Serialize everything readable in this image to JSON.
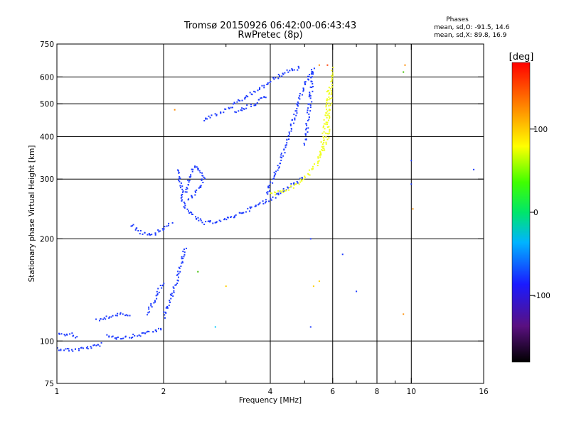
{
  "chart_data": {
    "type": "scatter",
    "title": "Tromsø 20150926 06:42:00-06:43:43",
    "subtitle": "RwPretec (8p)",
    "xlabel": "Frequency [MHz]",
    "ylabel": "Stationary phase Virtual Height [km]",
    "x_scale": "log",
    "y_scale": "log",
    "xlim": [
      1,
      16
    ],
    "ylim": [
      75,
      750
    ],
    "x_ticks": [
      1,
      2,
      4,
      6,
      8,
      10,
      16
    ],
    "x_minor_ticks": [
      3,
      5,
      7,
      9
    ],
    "y_ticks": [
      75,
      100,
      200,
      300,
      400,
      500,
      600,
      750
    ],
    "y_gridlines": [
      100,
      200,
      300,
      400,
      500,
      600
    ],
    "x_gridlines": [
      2,
      4,
      6,
      8,
      10
    ],
    "grid": true,
    "stats_header": "Phases",
    "stats_lines": [
      "mean, sd,O: -91.5, 14.6",
      "mean, sd,X:  89.8, 16.9"
    ],
    "colorbar": {
      "label": "[deg]",
      "range": [
        -180,
        180
      ],
      "ticks": [
        {
          "value": 100,
          "label": "100"
        },
        {
          "value": 0,
          "label": "0"
        },
        {
          "value": -100,
          "label": "-100"
        }
      ]
    },
    "series": [
      {
        "mode": "O",
        "color": "#1e3cff",
        "phase_deg": -91.5,
        "traces": [
          {
            "kind": "line",
            "points": [
              [
                1.0,
                95
              ],
              [
                1.1,
                94
              ],
              [
                1.25,
                96
              ],
              [
                1.35,
                98
              ]
            ]
          },
          {
            "kind": "line",
            "points": [
              [
                1.0,
                104
              ],
              [
                1.1,
                105
              ],
              [
                1.15,
                102
              ]
            ]
          },
          {
            "kind": "line",
            "points": [
              [
                1.38,
                104
              ],
              [
                1.5,
                102
              ],
              [
                1.7,
                104
              ],
              [
                1.85,
                107
              ],
              [
                2.0,
                108
              ]
            ]
          },
          {
            "kind": "line",
            "points": [
              [
                1.3,
                115
              ],
              [
                1.4,
                118
              ],
              [
                1.52,
                120
              ],
              [
                1.62,
                118
              ]
            ]
          },
          {
            "kind": "line",
            "points": [
              [
                2.0,
                118
              ],
              [
                2.1,
                135
              ],
              [
                2.18,
                150
              ],
              [
                2.25,
                170
              ],
              [
                2.3,
                190
              ]
            ]
          },
          {
            "kind": "line",
            "points": [
              [
                1.8,
                120
              ],
              [
                1.9,
                135
              ],
              [
                2.0,
                150
              ]
            ]
          },
          {
            "kind": "line",
            "points": [
              [
                1.7,
                210
              ],
              [
                1.85,
                204
              ],
              [
                2.0,
                214
              ],
              [
                2.12,
                222
              ]
            ]
          },
          {
            "kind": "line",
            "points": [
              [
                1.62,
                220
              ],
              [
                1.7,
                212
              ]
            ]
          },
          {
            "kind": "line",
            "points": [
              [
                2.2,
                320
              ],
              [
                2.28,
                250
              ],
              [
                2.4,
                235
              ],
              [
                2.6,
                222
              ],
              [
                3.0,
                228
              ],
              [
                3.5,
                245
              ],
              [
                4.0,
                262
              ],
              [
                4.5,
                285
              ],
              [
                5.0,
                305
              ]
            ]
          },
          {
            "kind": "line",
            "points": [
              [
                2.35,
                260
              ],
              [
                2.5,
                280
              ],
              [
                2.6,
                300
              ],
              [
                2.45,
                330
              ],
              [
                2.3,
                270
              ]
            ]
          },
          {
            "kind": "line",
            "points": [
              [
                2.6,
                450
              ],
              [
                2.9,
                470
              ],
              [
                3.2,
                500
              ],
              [
                3.6,
                540
              ],
              [
                4.0,
                580
              ],
              [
                4.4,
                620
              ],
              [
                4.9,
                640
              ]
            ]
          },
          {
            "kind": "line",
            "points": [
              [
                3.2,
                470
              ],
              [
                3.6,
                500
              ],
              [
                3.9,
                530
              ]
            ]
          },
          {
            "kind": "line",
            "points": [
              [
                3.9,
                270
              ],
              [
                4.0,
                290
              ],
              [
                4.2,
                320
              ],
              [
                4.5,
                400
              ],
              [
                4.8,
                500
              ],
              [
                5.1,
                600
              ],
              [
                5.3,
                630
              ]
            ]
          },
          {
            "kind": "line",
            "points": [
              [
                5.0,
                380
              ],
              [
                5.1,
                450
              ],
              [
                5.2,
                520
              ],
              [
                5.25,
                600
              ],
              [
                5.3,
                640
              ]
            ]
          }
        ]
      },
      {
        "mode": "X",
        "color": "#f0ff1e",
        "phase_deg": 89.8,
        "traces": [
          {
            "kind": "line",
            "points": [
              [
                4.0,
                270
              ],
              [
                4.5,
                280
              ],
              [
                5.0,
                300
              ],
              [
                5.5,
                340
              ],
              [
                5.8,
                400
              ],
              [
                5.9,
                500
              ],
              [
                5.95,
                600
              ],
              [
                6.0,
                640
              ]
            ]
          },
          {
            "kind": "line",
            "points": [
              [
                5.5,
                350
              ],
              [
                5.7,
                420
              ],
              [
                5.75,
                500
              ],
              [
                5.9,
                560
              ]
            ]
          }
        ]
      },
      {
        "mode": "scattered",
        "points": [
          [
            9.5,
            620,
            "#40c000"
          ],
          [
            9.6,
            650,
            "#ff8c00"
          ],
          [
            10.0,
            290,
            "#1e3cff"
          ],
          [
            10.0,
            340,
            "#1e3cff"
          ],
          [
            10.1,
            245,
            "#ff8c00"
          ],
          [
            9.5,
            120,
            "#ff8c00"
          ],
          [
            7.0,
            140,
            "#1e3cff"
          ],
          [
            6.4,
            180,
            "#1e3cff"
          ],
          [
            5.2,
            110,
            "#1e3cff"
          ],
          [
            5.3,
            145,
            "#ffd000"
          ],
          [
            5.5,
            150,
            "#ffd000"
          ],
          [
            5.2,
            200,
            "#1e3cff"
          ],
          [
            3.0,
            145,
            "#ffd000"
          ],
          [
            2.8,
            110,
            "#00c8ff"
          ],
          [
            2.5,
            160,
            "#40c000"
          ],
          [
            15.0,
            320,
            "#1e3cff"
          ],
          [
            2.15,
            480,
            "#ff8c00"
          ],
          [
            5.5,
            650,
            "#ff8c00"
          ],
          [
            5.8,
            650,
            "#ff3c00"
          ]
        ]
      }
    ]
  }
}
